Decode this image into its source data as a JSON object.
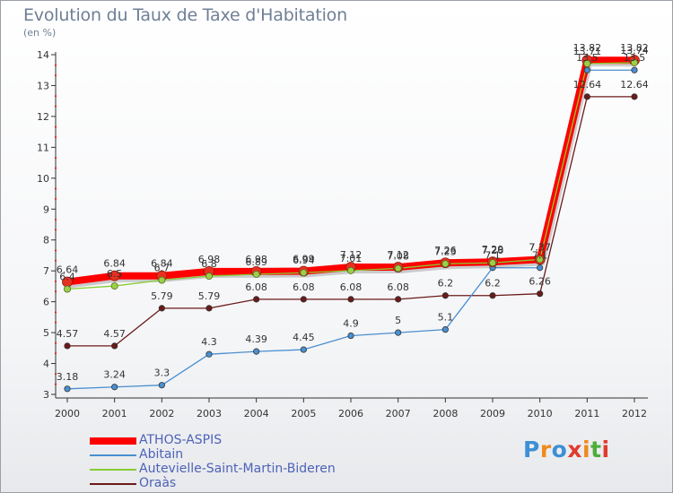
{
  "chart_data": {
    "type": "line",
    "title": "Evolution du Taux de Taxe d'Habitation",
    "subtitle": "(en %)",
    "x": [
      "2000",
      "2001",
      "2002",
      "2003",
      "2004",
      "2005",
      "2006",
      "2007",
      "2008",
      "2009",
      "2010",
      "2011",
      "2012"
    ],
    "ylim": [
      3,
      14
    ],
    "yticks": [
      "3",
      "4",
      "5",
      "6",
      "7",
      "8",
      "9",
      "10",
      "11",
      "12",
      "13",
      "14"
    ],
    "grid": false,
    "legend_position": "bottom-left",
    "series": [
      {
        "name": "ATHOS-ASPIS",
        "color": "#ff0000",
        "values": [
          6.64,
          6.84,
          6.84,
          6.98,
          6.98,
          6.99,
          7.12,
          7.12,
          7.26,
          7.29,
          7.37,
          13.82,
          13.82
        ],
        "labels": [
          "6.64",
          "6.84",
          "6.84",
          "6.98",
          "6.98",
          "6.99",
          "7.12",
          "7.12",
          "7.26",
          "7.29",
          "7.37",
          "13.82",
          "13.82"
        ]
      },
      {
        "name": "Abitain",
        "color": "#4a8fd0",
        "values": [
          3.18,
          3.24,
          3.3,
          4.3,
          4.39,
          4.45,
          4.9,
          5,
          5.1,
          7.1,
          7.1,
          13.5,
          13.5
        ],
        "labels": [
          "3.18",
          "3.24",
          "3.3",
          "4.3",
          "4.39",
          "4.45",
          "4.9",
          "5",
          "5.1",
          "7.1",
          "7.1",
          "13.5",
          "13.5"
        ]
      },
      {
        "name": "Autevielle-Saint-Martin-Bideren",
        "color": "#88cc33",
        "values": [
          6.41,
          6.51,
          6.7,
          6.83,
          6.89,
          6.94,
          7.01,
          7.08,
          7.23,
          7.26,
          7.37,
          13.71,
          13.74
        ],
        "labels": [
          "6.4",
          "6.5",
          "6.7",
          "6.8",
          "6.89",
          "6.94",
          "7.01",
          "7.08",
          "7.23",
          "7.26",
          "7.37",
          "13.71",
          "13.74"
        ]
      },
      {
        "name": "Oraàs",
        "color": "#6b1a1a",
        "values": [
          4.57,
          4.57,
          5.79,
          5.79,
          6.08,
          6.08,
          6.08,
          6.08,
          6.2,
          6.2,
          6.26,
          12.64,
          12.64
        ],
        "labels": [
          "4.57",
          "4.57",
          "5.79",
          "5.79",
          "6.08",
          "6.08",
          "6.08",
          "6.08",
          "6.2",
          "6.2",
          "6.26",
          "12.64",
          "12.64"
        ]
      }
    ]
  },
  "branding": {
    "logo_text": "Proxiti",
    "logo_letters": [
      "P",
      "r",
      "o",
      "x",
      "i",
      "t",
      "i"
    ],
    "logo_colors": [
      "#3d8fd6",
      "#f08a1c",
      "#3d8fd6",
      "#e03b2e",
      "#f08a1c",
      "#4cae3a",
      "#e03b2e"
    ]
  }
}
